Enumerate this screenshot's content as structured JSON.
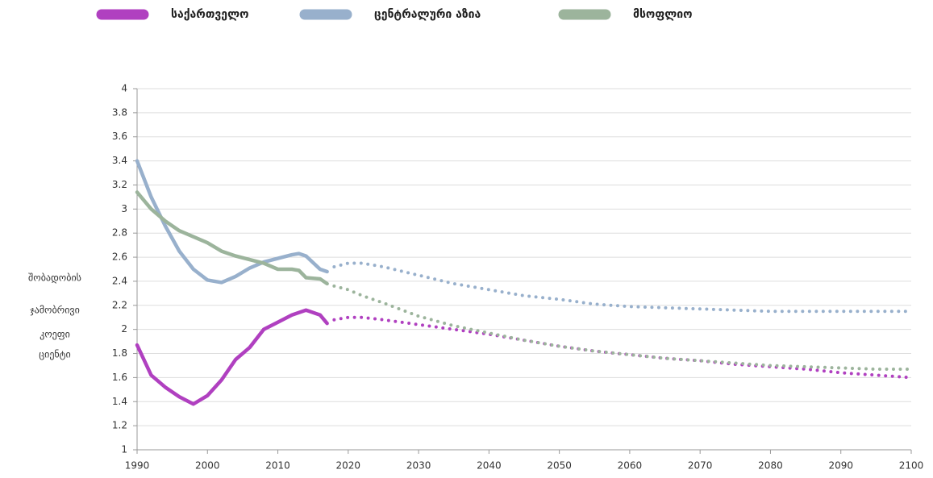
{
  "chart_data": {
    "type": "line",
    "y_label_lines": [
      "შობადობის",
      "ჯამობრივი",
      "კოეფი",
      "ციენტი"
    ],
    "x": [
      1990,
      1992,
      1994,
      1996,
      1998,
      2000,
      2002,
      2004,
      2006,
      2008,
      2010,
      2012,
      2013,
      2014,
      2016,
      2017,
      2018,
      2020,
      2022,
      2025,
      2030,
      2035,
      2040,
      2045,
      2050,
      2055,
      2060,
      2065,
      2070,
      2075,
      2080,
      2085,
      2090,
      2095,
      2100
    ],
    "series": [
      {
        "name": "საქართველო",
        "color": "#b040c0",
        "values": [
          1.87,
          1.62,
          1.52,
          1.44,
          1.38,
          1.45,
          1.58,
          1.75,
          1.85,
          2.0,
          2.06,
          2.12,
          2.14,
          2.16,
          2.12,
          2.05,
          null,
          null,
          null,
          null,
          null,
          null,
          null,
          null,
          null,
          null,
          null,
          null,
          null,
          null,
          null,
          null,
          null,
          null,
          null
        ],
        "projection": [
          null,
          null,
          null,
          null,
          null,
          null,
          null,
          null,
          null,
          null,
          null,
          null,
          null,
          null,
          null,
          null,
          2.08,
          2.1,
          2.1,
          2.08,
          2.04,
          2.0,
          1.96,
          1.91,
          1.86,
          1.82,
          1.79,
          1.76,
          1.74,
          1.71,
          1.69,
          1.67,
          1.64,
          1.62,
          1.6
        ]
      },
      {
        "name": "ცენტრალური აზია",
        "color": "#98b0cc",
        "values": [
          3.4,
          3.1,
          2.86,
          2.65,
          2.5,
          2.41,
          2.39,
          2.44,
          2.51,
          2.56,
          2.59,
          2.62,
          2.63,
          2.61,
          2.5,
          2.48,
          null,
          null,
          null,
          null,
          null,
          null,
          null,
          null,
          null,
          null,
          null,
          null,
          null,
          null,
          null,
          null,
          null,
          null,
          null
        ],
        "projection": [
          null,
          null,
          null,
          null,
          null,
          null,
          null,
          null,
          null,
          null,
          null,
          null,
          null,
          null,
          null,
          null,
          2.52,
          2.55,
          2.55,
          2.52,
          2.45,
          2.38,
          2.33,
          2.28,
          2.25,
          2.21,
          2.19,
          2.18,
          2.17,
          2.16,
          2.15,
          2.15,
          2.15,
          2.15,
          2.15
        ]
      },
      {
        "name": "მსოფლიო",
        "color": "#9cb49c",
        "values": [
          3.14,
          3.0,
          2.9,
          2.82,
          2.77,
          2.72,
          2.65,
          2.61,
          2.58,
          2.55,
          2.5,
          2.5,
          2.49,
          2.43,
          2.42,
          2.38,
          null,
          null,
          null,
          null,
          null,
          null,
          null,
          null,
          null,
          null,
          null,
          null,
          null,
          null,
          null,
          null,
          null,
          null,
          null
        ],
        "projection": [
          null,
          null,
          null,
          null,
          null,
          null,
          null,
          null,
          null,
          null,
          null,
          null,
          null,
          null,
          null,
          null,
          2.36,
          2.33,
          2.28,
          2.22,
          2.11,
          2.03,
          1.97,
          1.91,
          1.86,
          1.82,
          1.79,
          1.76,
          1.74,
          1.72,
          1.7,
          1.69,
          1.68,
          1.67,
          1.67
        ]
      }
    ],
    "xlim": [
      1990,
      2100
    ],
    "xticks": [
      1990,
      2000,
      2010,
      2020,
      2030,
      2040,
      2050,
      2060,
      2070,
      2080,
      2090,
      2100
    ],
    "ylim": [
      1,
      4
    ],
    "yticks": [
      1,
      1.2,
      1.4,
      1.6,
      1.8,
      2,
      2.2,
      2.4,
      2.6,
      2.8,
      3,
      3.2,
      3.4,
      3.6,
      3.8,
      4
    ],
    "grid": true,
    "legend": "top"
  }
}
